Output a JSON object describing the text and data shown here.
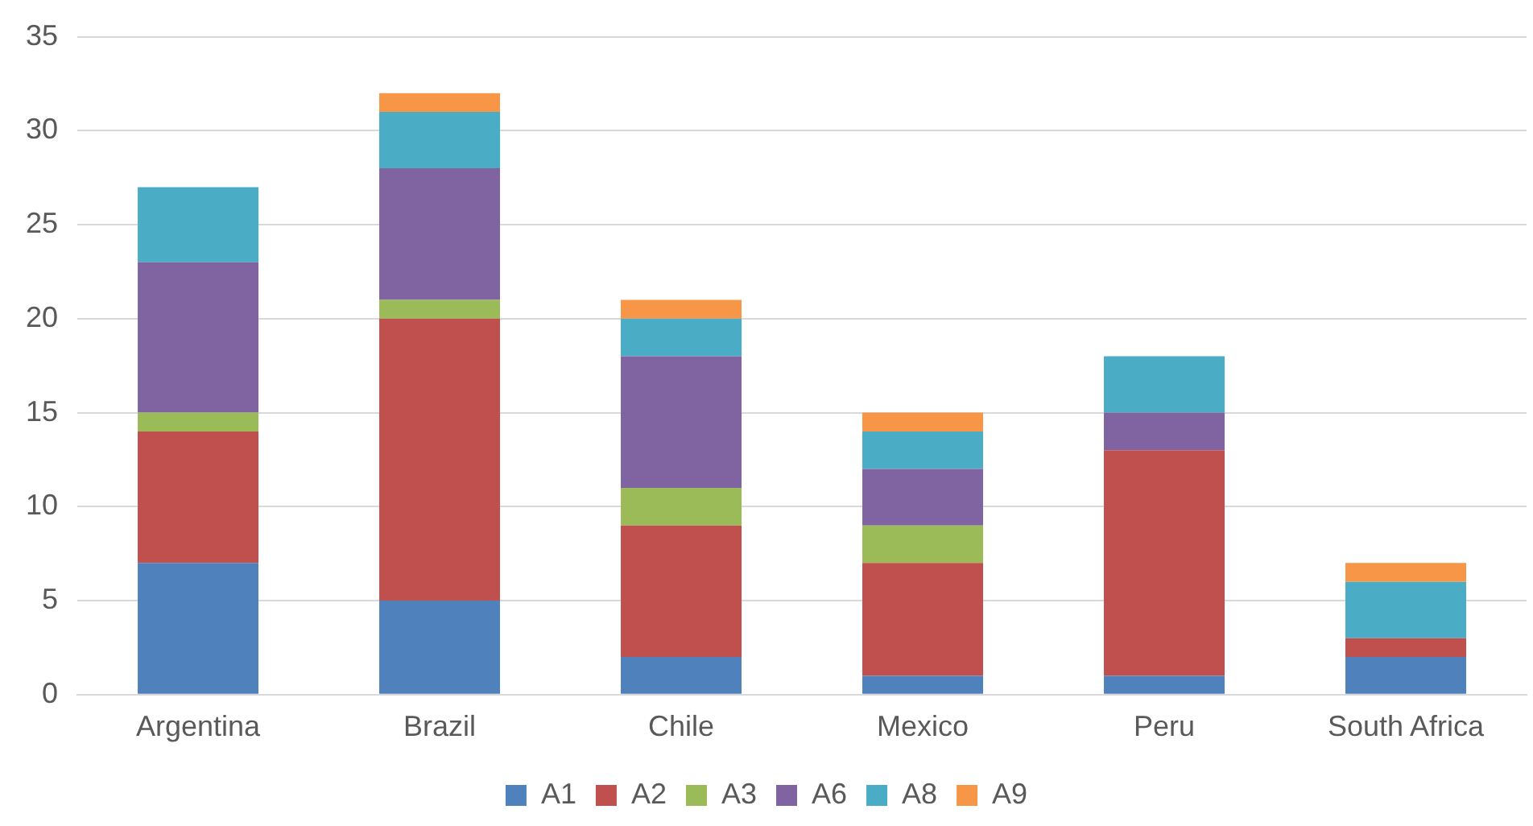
{
  "chart_data": {
    "type": "bar",
    "stacked": true,
    "categories": [
      "Argentina",
      "Brazil",
      "Chile",
      "Mexico",
      "Peru",
      "South Africa"
    ],
    "series": [
      {
        "name": "A1",
        "color": "#4f81bd",
        "values": [
          7,
          5,
          2,
          1,
          1,
          2
        ]
      },
      {
        "name": "A2",
        "color": "#c0504d",
        "values": [
          7,
          15,
          7,
          6,
          12,
          1
        ]
      },
      {
        "name": "A3",
        "color": "#9bbb59",
        "values": [
          1,
          1,
          2,
          2,
          0,
          0
        ]
      },
      {
        "name": "A6",
        "color": "#8064a2",
        "values": [
          8,
          7,
          7,
          3,
          2,
          0
        ]
      },
      {
        "name": "A8",
        "color": "#4bacc6",
        "values": [
          4,
          3,
          2,
          2,
          3,
          3
        ]
      },
      {
        "name": "A9",
        "color": "#f79646",
        "values": [
          0,
          1,
          1,
          1,
          0,
          1
        ]
      }
    ],
    "ylim": [
      0,
      35
    ],
    "yticks": [
      0,
      5,
      10,
      15,
      20,
      25,
      30,
      35
    ],
    "grid": "y",
    "legend": "bottom"
  }
}
